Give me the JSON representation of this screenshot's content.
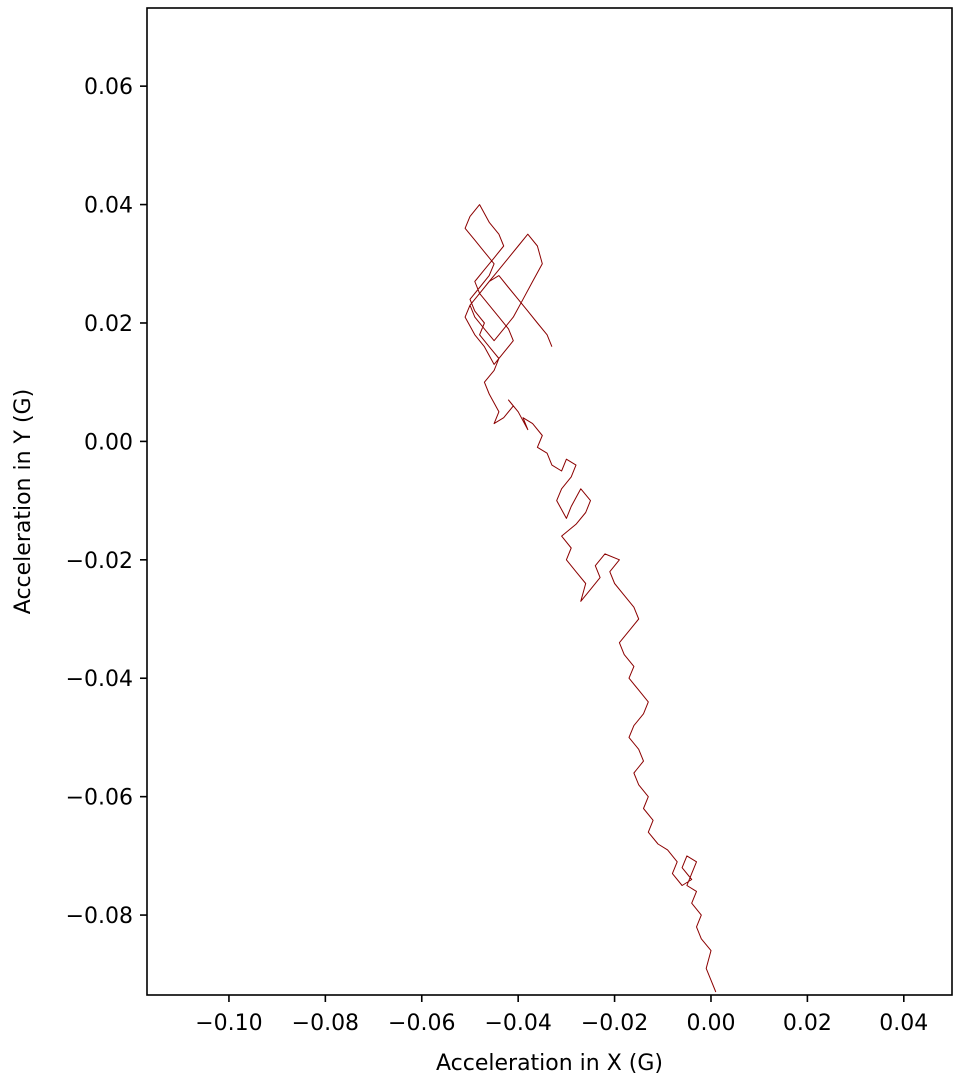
{
  "chart_data": {
    "type": "line",
    "title": "",
    "xlabel": "Acceleration in X (G)",
    "ylabel": "Acceleration in Y (G)",
    "xlim": [
      -0.117,
      0.05
    ],
    "ylim": [
      -0.0935,
      0.0732
    ],
    "x_ticks": [
      -0.1,
      -0.08,
      -0.06,
      -0.04,
      -0.02,
      0.0,
      0.02,
      0.04
    ],
    "x_tick_labels": [
      "−0.10",
      "−0.08",
      "−0.06",
      "−0.04",
      "−0.02",
      "0.00",
      "0.02",
      "0.04"
    ],
    "y_ticks": [
      0.06,
      0.04,
      0.02,
      0.0,
      -0.02,
      -0.04,
      -0.06,
      -0.08
    ],
    "y_tick_labels": [
      "0.06",
      "0.04",
      "0.02",
      "0.00",
      "−0.02",
      "−0.04",
      "−0.06",
      "−0.08"
    ],
    "grid": false,
    "legend": "none",
    "line_color": "#8b0000",
    "series": [
      {
        "x": [
          0.001,
          0.0,
          -0.001,
          0.0,
          -0.002,
          -0.003,
          -0.002,
          -0.004,
          -0.003,
          -0.005,
          -0.004,
          -0.003,
          -0.005,
          -0.006,
          -0.004,
          -0.006,
          -0.008,
          -0.007,
          -0.009,
          -0.011,
          -0.013,
          -0.012,
          -0.014,
          -0.013,
          -0.015,
          -0.016,
          -0.014,
          -0.015,
          -0.017,
          -0.016,
          -0.014,
          -0.013,
          -0.015,
          -0.017,
          -0.016,
          -0.018,
          -0.019,
          -0.017,
          -0.015,
          -0.016,
          -0.018,
          -0.02,
          -0.021,
          -0.019,
          -0.022,
          -0.024,
          -0.023,
          -0.025,
          -0.027,
          -0.026,
          -0.028,
          -0.03,
          -0.029,
          -0.031,
          -0.028,
          -0.026,
          -0.025,
          -0.027,
          -0.029,
          -0.03,
          -0.032,
          -0.031,
          -0.029,
          -0.028,
          -0.03,
          -0.031,
          -0.033,
          -0.034,
          -0.036,
          -0.035,
          -0.037,
          -0.039,
          -0.038,
          -0.04,
          -0.042,
          -0.041,
          -0.043,
          -0.045,
          -0.044,
          -0.046,
          -0.047,
          -0.045,
          -0.044,
          -0.046,
          -0.048,
          -0.047,
          -0.049,
          -0.05,
          -0.048,
          -0.046,
          -0.045,
          -0.047,
          -0.049,
          -0.051,
          -0.05,
          -0.048,
          -0.046,
          -0.044,
          -0.043,
          -0.045,
          -0.047,
          -0.049,
          -0.048,
          -0.046,
          -0.044,
          -0.042,
          -0.041,
          -0.043,
          -0.045,
          -0.047,
          -0.049,
          -0.051,
          -0.05,
          -0.048,
          -0.046,
          -0.044,
          -0.042,
          -0.04,
          -0.038,
          -0.036,
          -0.035,
          -0.037,
          -0.039,
          -0.041,
          -0.043,
          -0.045,
          -0.047,
          -0.049,
          -0.05,
          -0.048,
          -0.046,
          -0.044,
          -0.042,
          -0.04,
          -0.038,
          -0.036,
          -0.034,
          -0.033
        ],
        "y": [
          -0.093,
          -0.091,
          -0.089,
          -0.086,
          -0.084,
          -0.082,
          -0.08,
          -0.078,
          -0.076,
          -0.075,
          -0.073,
          -0.071,
          -0.07,
          -0.072,
          -0.074,
          -0.075,
          -0.073,
          -0.071,
          -0.069,
          -0.068,
          -0.066,
          -0.064,
          -0.062,
          -0.06,
          -0.058,
          -0.056,
          -0.054,
          -0.052,
          -0.05,
          -0.048,
          -0.046,
          -0.044,
          -0.042,
          -0.04,
          -0.038,
          -0.036,
          -0.034,
          -0.032,
          -0.03,
          -0.028,
          -0.026,
          -0.024,
          -0.022,
          -0.02,
          -0.019,
          -0.021,
          -0.023,
          -0.025,
          -0.027,
          -0.024,
          -0.022,
          -0.02,
          -0.018,
          -0.016,
          -0.014,
          -0.012,
          -0.01,
          -0.008,
          -0.011,
          -0.013,
          -0.01,
          -0.008,
          -0.006,
          -0.004,
          -0.003,
          -0.005,
          -0.004,
          -0.002,
          -0.001,
          0.001,
          0.003,
          0.004,
          0.002,
          0.005,
          0.007,
          0.006,
          0.004,
          0.003,
          0.005,
          0.008,
          0.01,
          0.012,
          0.014,
          0.016,
          0.018,
          0.02,
          0.022,
          0.024,
          0.026,
          0.028,
          0.03,
          0.032,
          0.034,
          0.036,
          0.038,
          0.04,
          0.037,
          0.035,
          0.033,
          0.031,
          0.029,
          0.027,
          0.025,
          0.023,
          0.021,
          0.019,
          0.017,
          0.015,
          0.013,
          0.016,
          0.018,
          0.021,
          0.023,
          0.025,
          0.027,
          0.029,
          0.031,
          0.033,
          0.035,
          0.033,
          0.03,
          0.027,
          0.024,
          0.021,
          0.019,
          0.017,
          0.019,
          0.021,
          0.023,
          0.025,
          0.027,
          0.028,
          0.026,
          0.024,
          0.022,
          0.02,
          0.018,
          0.016
        ]
      }
    ]
  }
}
